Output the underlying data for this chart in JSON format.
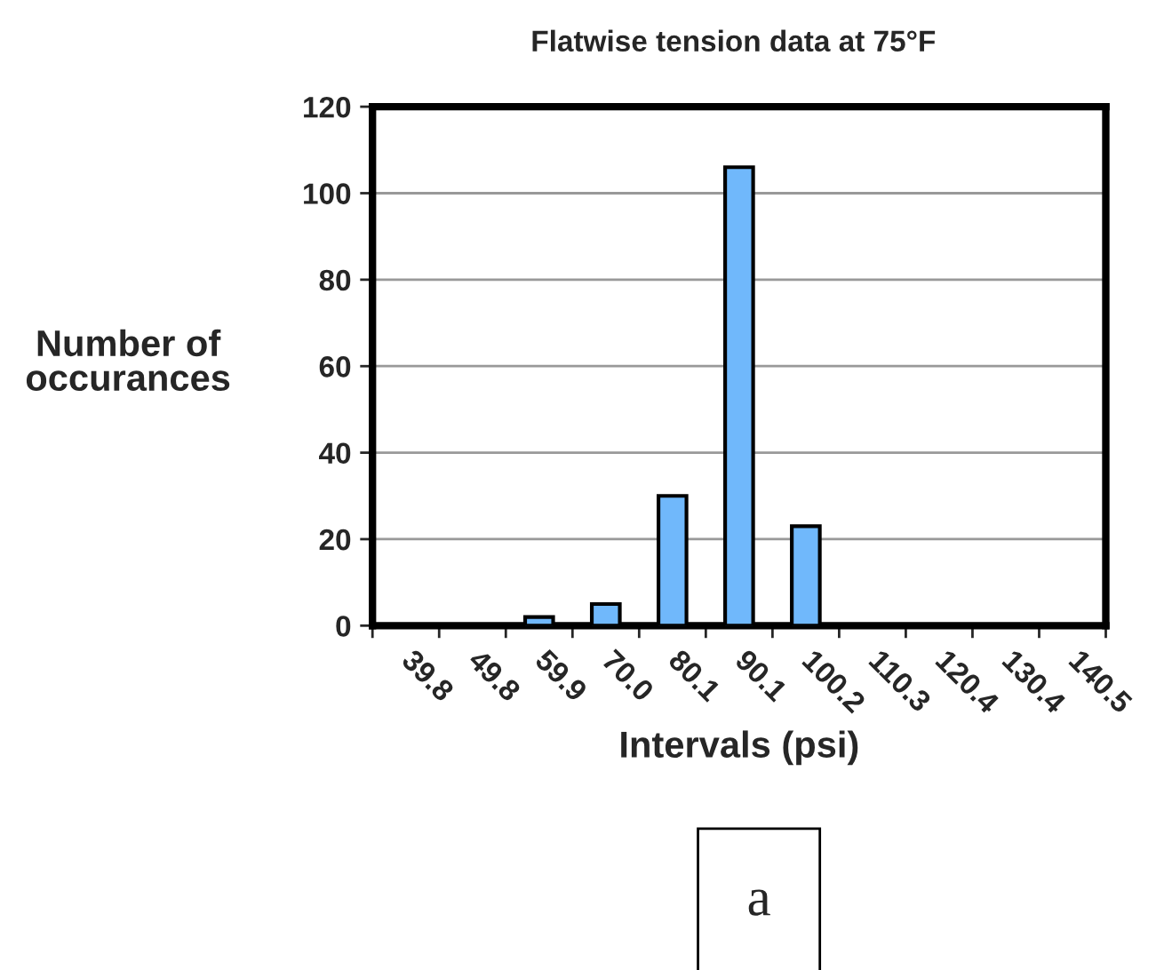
{
  "chart_data": {
    "type": "bar",
    "title": "Flatwise tension data at 75°F",
    "xlabel": "Intervals (psi)",
    "ylabel": "Number of\noccurances",
    "categories": [
      "39.8",
      "49.8",
      "59.9",
      "70.0",
      "80.1",
      "90.1",
      "100.2",
      "110.3",
      "120.4",
      "130.4",
      "140.5"
    ],
    "values": [
      0,
      0,
      2,
      5,
      30,
      106,
      23,
      0,
      0,
      0,
      0
    ],
    "color": "#70b8fb",
    "ylim": [
      0,
      120
    ],
    "yticks": [
      0,
      20,
      40,
      60,
      80,
      100,
      120
    ],
    "grid": "y",
    "legend": false,
    "annotations": [
      "a"
    ]
  }
}
